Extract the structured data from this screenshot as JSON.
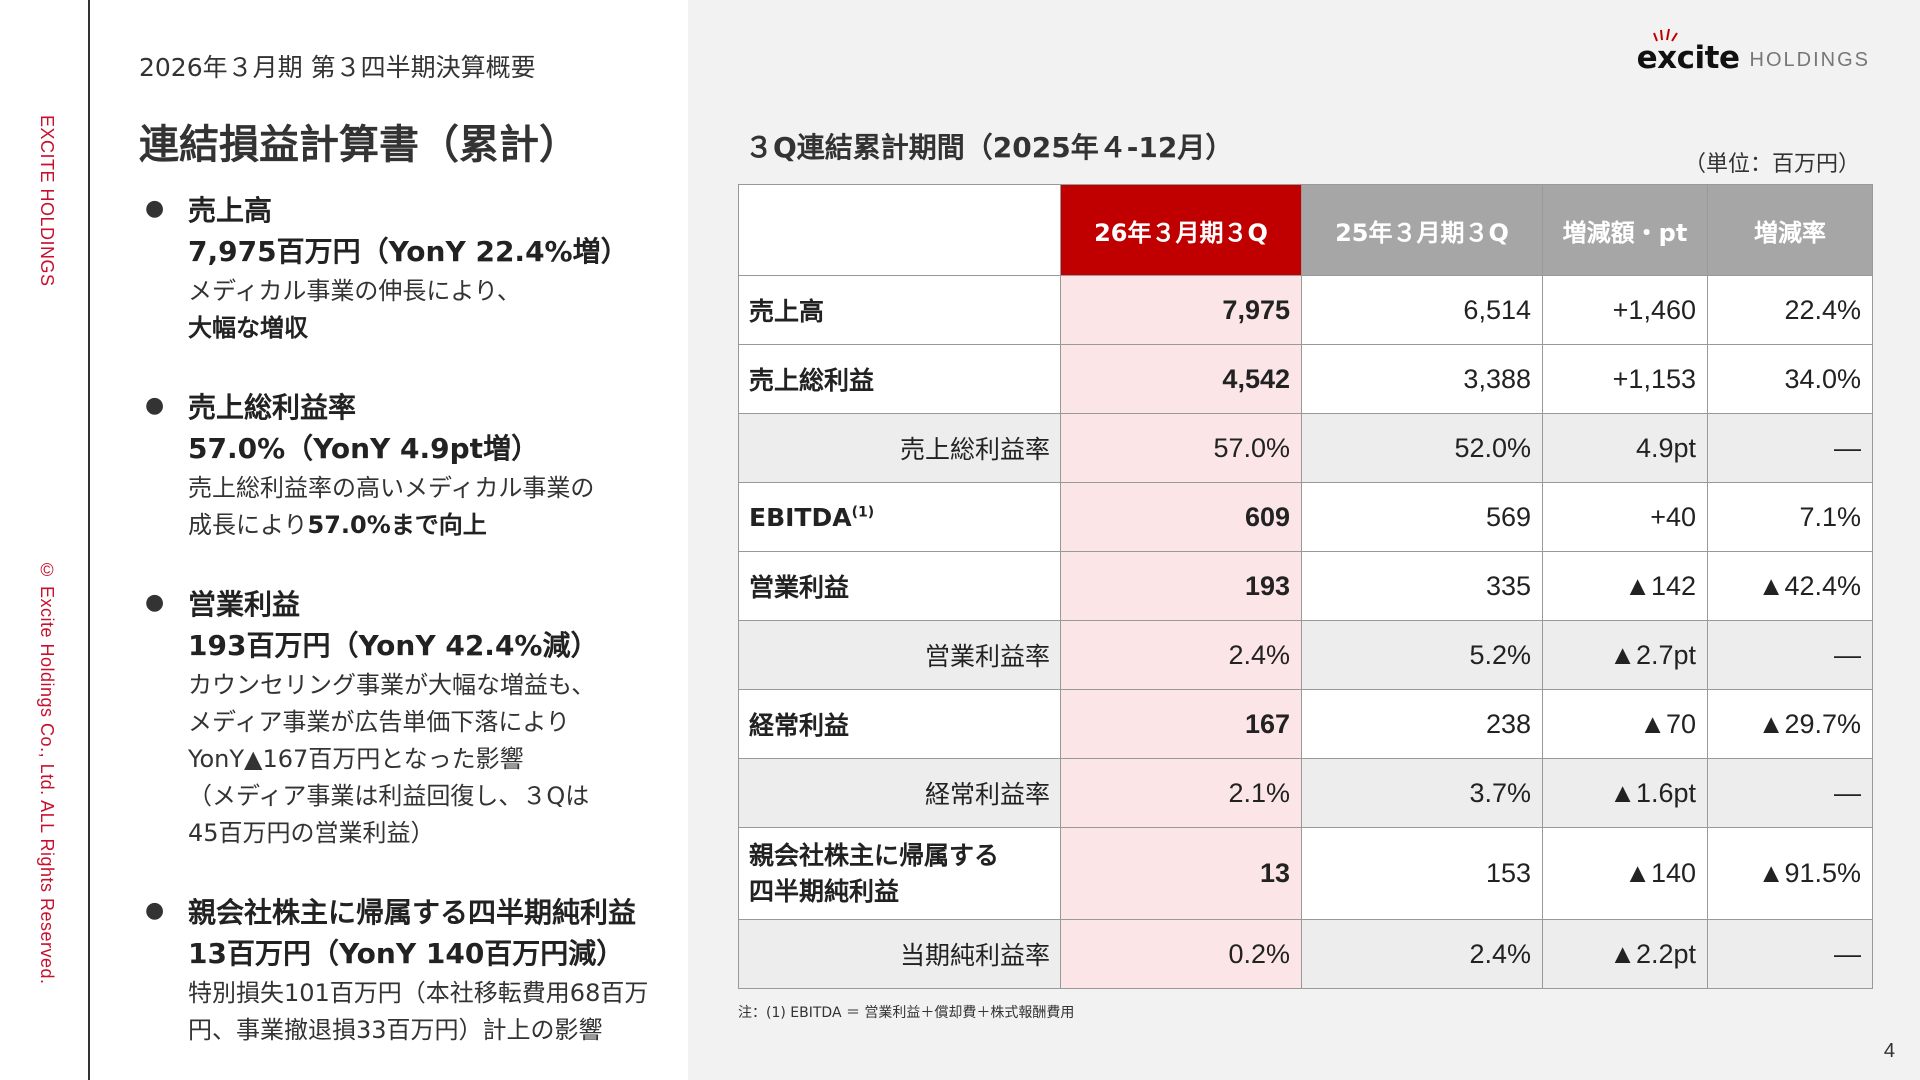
{
  "side": {
    "brand": "EXCITE HOLDINGS",
    "copyright": "© Excite Holdings Co., Ltd. ALL Rights Reserved."
  },
  "header": {
    "period": "2026年３月期 第３四半期決算概要",
    "title": "連結損益計算書（累計）"
  },
  "logo": {
    "main": "excite",
    "sub": "HOLDINGS"
  },
  "bullets": [
    {
      "head": "売上高",
      "sub": "7,975百万円（YonY 22.4%増）",
      "body1": "メディカル事業の伸長により、",
      "body2_bold": "大幅な増収"
    },
    {
      "head": "売上総利益率",
      "sub": "57.0%（YonY 4.9pt増）",
      "body1": "売上総利益率の高いメディカル事業の",
      "body2": "成長により",
      "body2_bold": "57.0%まで向上"
    },
    {
      "head": "営業利益",
      "sub": "193百万円（YonY 42.4%減）",
      "body1": "カウンセリング事業が大幅な増益も、",
      "body2": "メディア事業が広告単価下落により",
      "body3": "YonY▲167百万円となった影響",
      "body4": "（メディア事業は利益回復し、３Qは",
      "body5": "45百万円の営業利益）"
    },
    {
      "head": "親会社株主に帰属する四半期純利益",
      "sub": "13百万円（YonY 140百万円減）",
      "body1": "特別損失101百万円（本社移転費用68百万",
      "body2": "円、事業撤退損33百万円）計上の影響"
    }
  ],
  "table": {
    "title": "３Q連結累計期間（2025年４-12月）",
    "unit": "（単位：百万円）",
    "headers": [
      "",
      "26年３月期３Q",
      "25年３月期３Q",
      "増減額・pt",
      "増減率"
    ],
    "rows": [
      {
        "label": "売上高",
        "cur": "7,975",
        "prev": "6,514",
        "diff": "+1,460",
        "rate": "22.4%"
      },
      {
        "label": "売上総利益",
        "cur": "4,542",
        "prev": "3,388",
        "diff": "+1,153",
        "rate": "34.0%"
      },
      {
        "label": "売上総利益率",
        "cur": "57.0%",
        "prev": "52.0%",
        "diff": "4.9pt",
        "rate": "―"
      },
      {
        "label": "EBITDA",
        "label_sup": "(1)",
        "cur": "609",
        "prev": "569",
        "diff": "+40",
        "rate": "7.1%"
      },
      {
        "label": "営業利益",
        "cur": "193",
        "prev": "335",
        "diff": "▲142",
        "rate": "▲42.4%"
      },
      {
        "label": "営業利益率",
        "cur": "2.4%",
        "prev": "5.2%",
        "diff": "▲2.7pt",
        "rate": "―"
      },
      {
        "label": "経常利益",
        "cur": "167",
        "prev": "238",
        "diff": "▲70",
        "rate": "▲29.7%"
      },
      {
        "label": "経常利益率",
        "cur": "2.1%",
        "prev": "3.7%",
        "diff": "▲1.6pt",
        "rate": "―"
      },
      {
        "label": "親会社株主に帰属する",
        "label2": "四半期純利益",
        "cur": "13",
        "prev": "153",
        "diff": "▲140",
        "rate": "▲91.5%"
      },
      {
        "label": "当期純利益率",
        "cur": "0.2%",
        "prev": "2.4%",
        "diff": "▲2.2pt",
        "rate": "―"
      }
    ],
    "note": "注：(1) EBITDA ＝ 営業利益＋償却費＋株式報酬費用"
  },
  "page_number": "4",
  "colors": {
    "accent": "#c00000",
    "header_grey": "#a6a6a6",
    "highlight": "#fbe5e6"
  }
}
